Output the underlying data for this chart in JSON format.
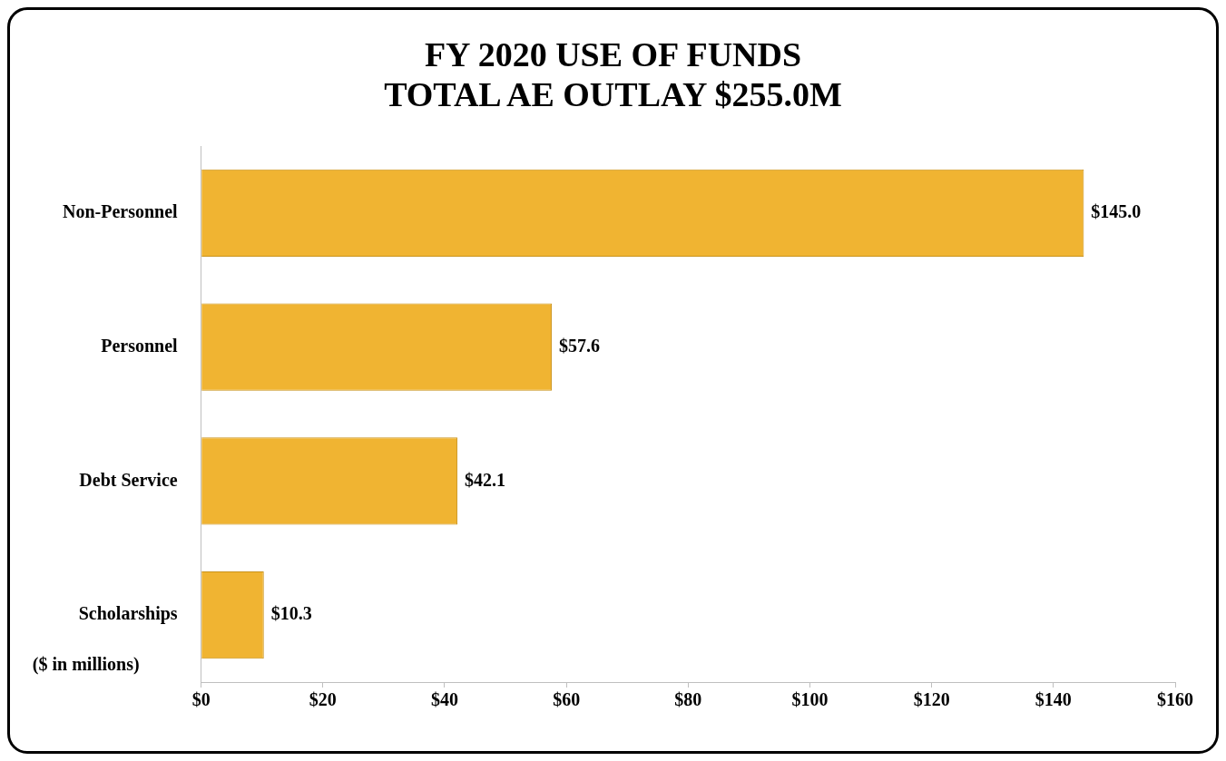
{
  "chart_data": {
    "type": "bar",
    "orientation": "horizontal",
    "title": "FY 2020 USE OF FUNDS\nTOTAL AE OUTLAY $255.0M",
    "categories": [
      "Non-Personnel",
      "Personnel",
      "Debt Service",
      "Scholarships"
    ],
    "values": [
      145.0,
      57.6,
      42.1,
      10.3
    ],
    "color": "#f0b432",
    "value_labels": [
      "$145.0",
      "$57.6",
      "$42.1",
      "$10.3"
    ],
    "xlim": [
      0,
      160
    ],
    "xticks": [
      {
        "value": 0,
        "label": "$0"
      },
      {
        "value": 20,
        "label": "$20"
      },
      {
        "value": 40,
        "label": "$40"
      },
      {
        "value": 60,
        "label": "$60"
      },
      {
        "value": 80,
        "label": "$80"
      },
      {
        "value": 100,
        "label": "$100"
      },
      {
        "value": 120,
        "label": "$120"
      },
      {
        "value": 140,
        "label": "$140"
      },
      {
        "value": 160,
        "label": "$160"
      }
    ],
    "annotations": [
      "($ in millions)"
    ],
    "legend": false
  }
}
